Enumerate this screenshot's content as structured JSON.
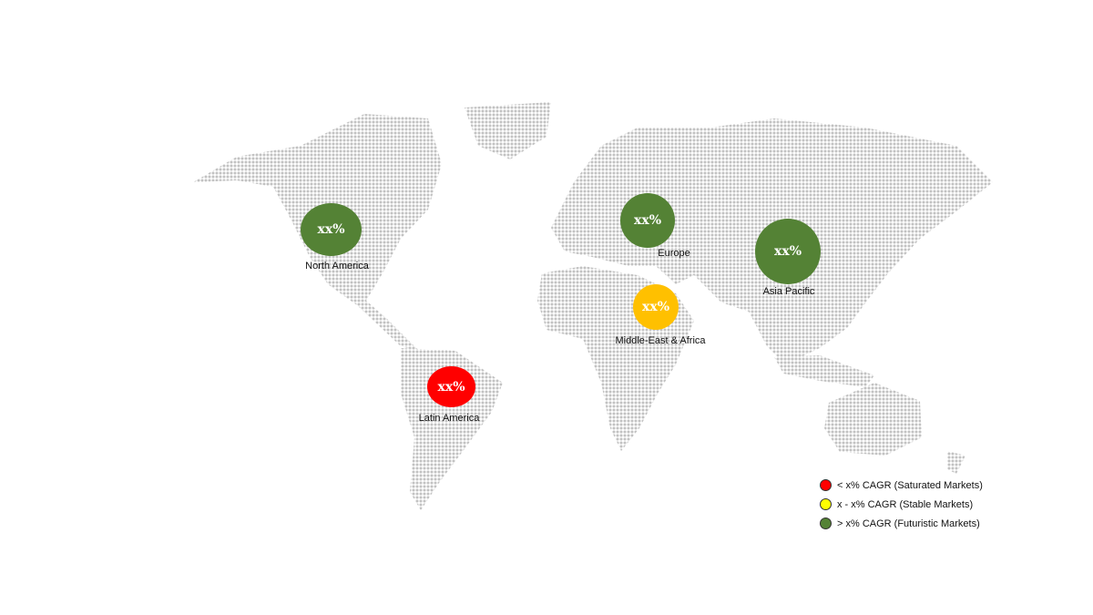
{
  "regions": [
    {
      "name": "North America",
      "value": "xx%",
      "color": "#548235"
    },
    {
      "name": "Europe",
      "value": "xx%",
      "color": "#548235"
    },
    {
      "name": "Asia Pacific",
      "value": "xx%",
      "color": "#548235"
    },
    {
      "name": "Middle-East & Africa",
      "value": "xx%",
      "color": "#FFC000"
    },
    {
      "name": "Latin America",
      "value": "xx%",
      "color": "#FF0000"
    }
  ],
  "legend": [
    {
      "label": "< x% CAGR (Saturated Markets)",
      "color": "#FF0000"
    },
    {
      "label": "x - x% CAGR (Stable Markets)",
      "color": "#FFFF00"
    },
    {
      "label": "> x% CAGR (Futuristic Markets)",
      "color": "#548235"
    }
  ]
}
